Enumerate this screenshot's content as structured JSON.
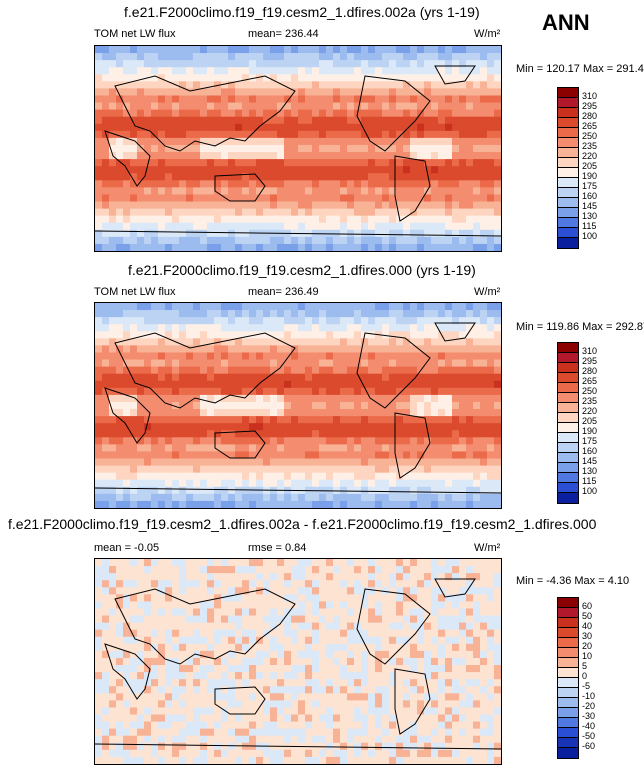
{
  "corner_label": "ANN",
  "panels": [
    {
      "title": "f.e21.F2000climo.f19_f19.cesm2_1.dfires.002a (yrs 1-19)",
      "left_label": "TOM net LW flux",
      "center_label": "mean= 236.44",
      "units": "W/m²",
      "minmax": "Min = 120.17 Max = 291.49",
      "type": "field"
    },
    {
      "title": "f.e21.F2000climo.f19_f19.cesm2_1.dfires.000 (yrs 1-19)",
      "left_label": "TOM net LW flux",
      "center_label": "mean= 236.49",
      "units": "W/m²",
      "minmax": "Min = 119.86 Max = 292.87",
      "type": "field"
    },
    {
      "title": "f.e21.F2000climo.f19_f19.cesm2_1.dfires.002a - f.e21.F2000climo.f19_f19.cesm2_1.dfires.000",
      "left_label": "mean =  -0.05",
      "center_label": "rmse =   0.84",
      "units": "W/m²",
      "minmax": "Min =  -4.36 Max =   4.10",
      "type": "diff"
    }
  ],
  "chart_data": {
    "type": "heatmap",
    "field_colorbar": {
      "levels": [
        "310",
        "295",
        "280",
        "265",
        "250",
        "235",
        "220",
        "205",
        "190",
        "175",
        "160",
        "145",
        "130",
        "115",
        "100"
      ],
      "colors": [
        "#8b0000",
        "#b2182b",
        "#c9301e",
        "#dc4a2e",
        "#eb6a4a",
        "#f48d6f",
        "#f8b295",
        "#fdd5c0",
        "#fef0e6",
        "#dbe8f8",
        "#bdd3f4",
        "#9cbcf0",
        "#7aa0ea",
        "#4f78e0",
        "#2a4fd4",
        "#0a1f9e"
      ]
    },
    "diff_colorbar": {
      "levels": [
        "60",
        "50",
        "40",
        "30",
        "20",
        "10",
        "5",
        "0",
        "-5",
        "-10",
        "-20",
        "-30",
        "-40",
        "-50",
        "-60"
      ],
      "colors": [
        "#8b0000",
        "#b2182b",
        "#c9301e",
        "#dc4a2e",
        "#eb6a4a",
        "#f48d6f",
        "#f8b295",
        "#fde3d2",
        "#dbe8f8",
        "#bdd3f4",
        "#9cbcf0",
        "#7aa0ea",
        "#4f78e0",
        "#2a4fd4",
        "#1733b8",
        "#0a1f9e"
      ]
    }
  }
}
